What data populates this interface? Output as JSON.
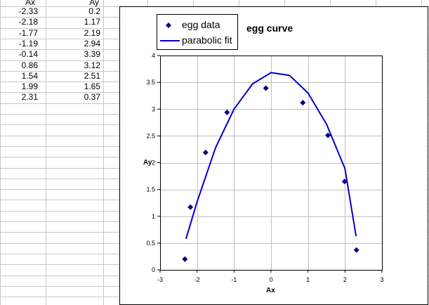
{
  "spreadsheet": {
    "headers": [
      "Ax",
      "Ay"
    ],
    "rows": [
      [
        "-2.33",
        "0.2"
      ],
      [
        "-2.18",
        "1.17"
      ],
      [
        "-1.77",
        "2.19"
      ],
      [
        "-1.19",
        "2.94"
      ],
      [
        "-0.14",
        "3.39"
      ],
      [
        "0.86",
        "3.12"
      ],
      [
        "1.54",
        "2.51"
      ],
      [
        "1.99",
        "1.65"
      ],
      [
        "2.31",
        "0.37"
      ]
    ]
  },
  "colors": {
    "marker": "#00007f",
    "fit_line": "#0000cc",
    "gridline": "#c0c0c0",
    "plot_border": "#000000"
  },
  "chart_data": {
    "type": "scatter",
    "title": "egg curve",
    "xlabel": "Ax",
    "ylabel": "Ay",
    "xlim": [
      -3,
      3
    ],
    "ylim": [
      0,
      4
    ],
    "xticks": [
      -3,
      -2,
      -1,
      0,
      1,
      2,
      3
    ],
    "yticks": [
      0,
      0.5,
      1,
      1.5,
      2,
      2.5,
      3,
      3.5,
      4
    ],
    "grid": true,
    "legend_position": "top-left",
    "series": [
      {
        "name": "egg data",
        "kind": "markers",
        "marker": "diamond",
        "x": [
          -2.33,
          -2.18,
          -1.77,
          -1.19,
          -0.14,
          0.86,
          1.54,
          1.99,
          2.31
        ],
        "y": [
          0.2,
          1.17,
          2.19,
          2.94,
          3.39,
          3.12,
          2.51,
          1.65,
          0.37
        ]
      },
      {
        "name": "parabolic fit",
        "kind": "line",
        "x": [
          -2.3,
          -2.0,
          -1.5,
          -1.0,
          -0.5,
          0.0,
          0.5,
          1.0,
          1.5,
          2.0,
          2.3
        ],
        "y": [
          0.58,
          1.27,
          2.28,
          3.0,
          3.47,
          3.68,
          3.63,
          3.3,
          2.72,
          1.89,
          0.63
        ]
      }
    ]
  }
}
